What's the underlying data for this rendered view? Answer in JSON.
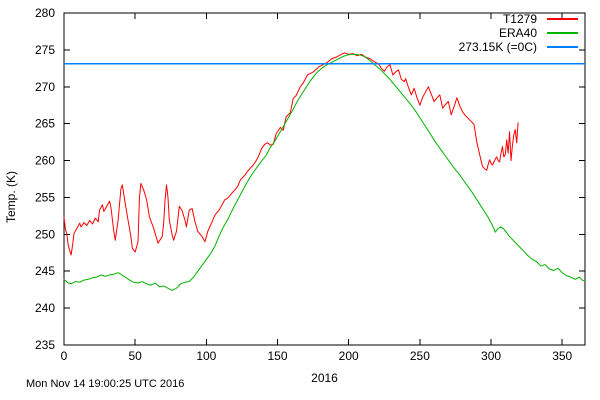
{
  "chart": {
    "timestamp": "Mon Nov 14 19:00:25 UTC 2016",
    "x_label": "2016",
    "y_label": "Temp. (K)",
    "legend": [
      {
        "label": "T1279",
        "color": "#ff0000"
      },
      {
        "label": "ERA40",
        "color": "#00b400"
      },
      {
        "label": "273.15K (=0C)",
        "color": "#0080ff"
      }
    ]
  },
  "chart_data": {
    "type": "line",
    "title": "",
    "xlabel": "2016",
    "ylabel": "Temp. (K)",
    "x_range": [
      0,
      366
    ],
    "y_range": [
      235,
      280
    ],
    "x_ticks": [
      0,
      50,
      100,
      150,
      200,
      250,
      300,
      350
    ],
    "y_ticks": [
      235,
      240,
      245,
      250,
      255,
      260,
      265,
      270,
      275,
      280
    ],
    "grid": false,
    "legend_position": "top-right",
    "ref_line": {
      "label": "273.15K (=0C)",
      "value": 273.15,
      "color": "#0080ff"
    },
    "series": [
      {
        "name": "T1279",
        "color": "#ff0000",
        "points": [
          [
            0,
            252.3
          ],
          [
            1,
            250.7
          ],
          [
            2,
            250.0
          ],
          [
            3,
            248.5
          ],
          [
            4,
            247.8
          ],
          [
            5,
            247.2
          ],
          [
            6,
            248.5
          ],
          [
            7,
            250.1
          ],
          [
            9,
            250.8
          ],
          [
            11,
            251.5
          ],
          [
            12,
            251.0
          ],
          [
            14,
            251.6
          ],
          [
            16,
            251.2
          ],
          [
            18,
            251.9
          ],
          [
            20,
            251.4
          ],
          [
            22,
            252.2
          ],
          [
            24,
            251.7
          ],
          [
            25,
            253.3
          ],
          [
            27,
            254.0
          ],
          [
            28,
            253.1
          ],
          [
            30,
            253.8
          ],
          [
            32,
            254.5
          ],
          [
            33,
            253.6
          ],
          [
            35,
            250.4
          ],
          [
            36,
            249.2
          ],
          [
            38,
            251.9
          ],
          [
            40,
            256.2
          ],
          [
            41,
            256.7
          ],
          [
            43,
            254.2
          ],
          [
            45,
            251.9
          ],
          [
            47,
            249.7
          ],
          [
            48,
            248.1
          ],
          [
            50,
            247.6
          ],
          [
            52,
            249.0
          ],
          [
            53,
            255.0
          ],
          [
            54,
            256.9
          ],
          [
            56,
            256.0
          ],
          [
            58,
            254.7
          ],
          [
            60,
            252.4
          ],
          [
            63,
            250.8
          ],
          [
            65,
            249.5
          ],
          [
            66,
            248.8
          ],
          [
            69,
            249.7
          ],
          [
            70,
            251.5
          ],
          [
            71,
            254.7
          ],
          [
            72,
            256.7
          ],
          [
            73,
            255.1
          ],
          [
            74,
            251.9
          ],
          [
            76,
            249.9
          ],
          [
            77,
            249.2
          ],
          [
            79,
            250.4
          ],
          [
            81,
            253.8
          ],
          [
            83,
            253.2
          ],
          [
            85,
            251.9
          ],
          [
            86,
            251.0
          ],
          [
            88,
            253.3
          ],
          [
            90,
            253.5
          ],
          [
            92,
            251.7
          ],
          [
            94,
            250.4
          ],
          [
            97,
            249.7
          ],
          [
            99,
            249.0
          ],
          [
            101,
            250.4
          ],
          [
            104,
            251.7
          ],
          [
            106,
            252.6
          ],
          [
            109,
            253.3
          ],
          [
            111,
            254.0
          ],
          [
            113,
            254.7
          ],
          [
            115,
            254.9
          ],
          [
            118,
            255.6
          ],
          [
            120,
            256.0
          ],
          [
            122,
            256.5
          ],
          [
            124,
            257.4
          ],
          [
            127,
            258.0
          ],
          [
            130,
            258.8
          ],
          [
            133,
            259.4
          ],
          [
            136,
            260.3
          ],
          [
            139,
            261.7
          ],
          [
            141,
            262.2
          ],
          [
            143,
            262.4
          ],
          [
            145,
            262.1
          ],
          [
            147,
            262.2
          ],
          [
            149,
            263.6
          ],
          [
            152,
            264.5
          ],
          [
            154,
            264.1
          ],
          [
            156,
            265.9
          ],
          [
            159,
            266.5
          ],
          [
            161,
            268.4
          ],
          [
            163,
            268.8
          ],
          [
            166,
            270.0
          ],
          [
            168,
            270.5
          ],
          [
            171,
            271.6
          ],
          [
            175,
            272.0
          ],
          [
            179,
            272.7
          ],
          [
            182,
            273.0
          ],
          [
            185,
            273.3
          ],
          [
            188,
            273.8
          ],
          [
            191,
            274.0
          ],
          [
            194,
            274.3
          ],
          [
            197,
            274.6
          ],
          [
            200,
            274.4
          ],
          [
            203,
            274.5
          ],
          [
            206,
            274.2
          ],
          [
            209,
            274.4
          ],
          [
            212,
            274.0
          ],
          [
            215,
            273.8
          ],
          [
            218,
            273.4
          ],
          [
            221,
            273.1
          ],
          [
            223,
            272.5
          ],
          [
            225,
            272.1
          ],
          [
            227,
            272.7
          ],
          [
            229,
            273.0
          ],
          [
            231,
            271.6
          ],
          [
            233,
            272.0
          ],
          [
            235,
            272.3
          ],
          [
            237,
            271.0
          ],
          [
            239,
            270.7
          ],
          [
            240,
            271.1
          ],
          [
            242,
            269.9
          ],
          [
            244,
            268.9
          ],
          [
            246,
            269.8
          ],
          [
            248,
            268.5
          ],
          [
            250,
            267.5
          ],
          [
            252,
            268.6
          ],
          [
            254,
            269.3
          ],
          [
            256,
            270.0
          ],
          [
            258,
            269.0
          ],
          [
            260,
            268.0
          ],
          [
            262,
            268.5
          ],
          [
            264,
            268.9
          ],
          [
            266,
            267.1
          ],
          [
            268,
            267.6
          ],
          [
            270,
            268.0
          ],
          [
            272,
            266.2
          ],
          [
            274,
            267.3
          ],
          [
            276,
            268.5
          ],
          [
            278,
            267.4
          ],
          [
            280,
            266.6
          ],
          [
            282,
            266.1
          ],
          [
            284,
            265.7
          ],
          [
            286,
            265.3
          ],
          [
            288,
            264.9
          ],
          [
            290,
            262.5
          ],
          [
            292,
            260.8
          ],
          [
            294,
            259.2
          ],
          [
            296,
            258.8
          ],
          [
            297,
            258.7
          ],
          [
            298,
            259.5
          ],
          [
            299,
            260.1
          ],
          [
            300,
            259.6
          ],
          [
            301,
            259.4
          ],
          [
            302,
            259.8
          ],
          [
            303,
            260.2
          ],
          [
            304,
            260.5
          ],
          [
            305,
            260.0
          ],
          [
            306,
            259.8
          ],
          [
            307,
            261.0
          ],
          [
            308,
            261.9
          ],
          [
            309,
            260.5
          ],
          [
            310,
            260.8
          ],
          [
            311,
            262.8
          ],
          [
            312,
            261.0
          ],
          [
            313,
            263.9
          ],
          [
            314,
            260.0
          ],
          [
            315,
            262.0
          ],
          [
            316,
            263.5
          ],
          [
            317,
            264.2
          ],
          [
            318,
            262.4
          ],
          [
            319,
            265.1
          ]
        ]
      },
      {
        "name": "ERA40",
        "color": "#00b400",
        "points": [
          [
            0,
            243.9
          ],
          [
            3,
            243.4
          ],
          [
            5,
            243.3
          ],
          [
            8,
            243.6
          ],
          [
            11,
            243.5
          ],
          [
            14,
            243.8
          ],
          [
            17,
            243.9
          ],
          [
            20,
            244.1
          ],
          [
            23,
            244.2
          ],
          [
            26,
            244.5
          ],
          [
            29,
            244.3
          ],
          [
            32,
            244.5
          ],
          [
            35,
            244.6
          ],
          [
            38,
            244.8
          ],
          [
            40,
            244.6
          ],
          [
            43,
            244.2
          ],
          [
            46,
            243.8
          ],
          [
            49,
            243.5
          ],
          [
            52,
            243.4
          ],
          [
            55,
            243.6
          ],
          [
            58,
            243.3
          ],
          [
            61,
            243.1
          ],
          [
            64,
            243.4
          ],
          [
            67,
            242.9
          ],
          [
            70,
            243.0
          ],
          [
            73,
            242.7
          ],
          [
            76,
            242.4
          ],
          [
            79,
            242.7
          ],
          [
            82,
            243.3
          ],
          [
            85,
            243.5
          ],
          [
            88,
            243.6
          ],
          [
            91,
            244.2
          ],
          [
            94,
            245.0
          ],
          [
            97,
            245.8
          ],
          [
            100,
            246.6
          ],
          [
            103,
            247.4
          ],
          [
            106,
            248.4
          ],
          [
            109,
            249.8
          ],
          [
            112,
            251.0
          ],
          [
            115,
            252.0
          ],
          [
            118,
            253.2
          ],
          [
            121,
            254.3
          ],
          [
            124,
            255.4
          ],
          [
            127,
            256.5
          ],
          [
            130,
            257.5
          ],
          [
            133,
            258.4
          ],
          [
            136,
            259.2
          ],
          [
            139,
            260.0
          ],
          [
            142,
            260.7
          ],
          [
            145,
            261.8
          ],
          [
            148,
            262.6
          ],
          [
            151,
            263.6
          ],
          [
            154,
            264.6
          ],
          [
            157,
            265.6
          ],
          [
            160,
            266.6
          ],
          [
            163,
            267.7
          ],
          [
            166,
            268.7
          ],
          [
            169,
            269.6
          ],
          [
            172,
            270.5
          ],
          [
            175,
            271.3
          ],
          [
            178,
            272.0
          ],
          [
            181,
            272.5
          ],
          [
            184,
            272.9
          ],
          [
            187,
            273.2
          ],
          [
            190,
            273.5
          ],
          [
            193,
            273.8
          ],
          [
            196,
            274.1
          ],
          [
            199,
            274.3
          ],
          [
            202,
            274.4
          ],
          [
            205,
            274.4
          ],
          [
            208,
            274.3
          ],
          [
            211,
            274.1
          ],
          [
            214,
            273.7
          ],
          [
            217,
            273.2
          ],
          [
            220,
            272.7
          ],
          [
            223,
            272.2
          ],
          [
            226,
            271.6
          ],
          [
            229,
            271.0
          ],
          [
            232,
            270.3
          ],
          [
            235,
            269.6
          ],
          [
            238,
            268.9
          ],
          [
            241,
            268.2
          ],
          [
            244,
            267.5
          ],
          [
            247,
            266.7
          ],
          [
            250,
            265.8
          ],
          [
            253,
            264.9
          ],
          [
            256,
            264.0
          ],
          [
            259,
            263.1
          ],
          [
            262,
            262.2
          ],
          [
            265,
            261.4
          ],
          [
            268,
            260.6
          ],
          [
            271,
            259.8
          ],
          [
            274,
            259.0
          ],
          [
            277,
            258.3
          ],
          [
            280,
            257.5
          ],
          [
            283,
            256.7
          ],
          [
            286,
            255.9
          ],
          [
            289,
            255.0
          ],
          [
            292,
            254.1
          ],
          [
            295,
            253.2
          ],
          [
            298,
            252.3
          ],
          [
            301,
            251.2
          ],
          [
            303,
            250.3
          ],
          [
            305,
            250.8
          ],
          [
            307,
            251.0
          ],
          [
            309,
            250.7
          ],
          [
            311,
            250.2
          ],
          [
            313,
            249.7
          ],
          [
            315,
            249.3
          ],
          [
            317,
            248.9
          ],
          [
            320,
            248.3
          ],
          [
            323,
            247.7
          ],
          [
            326,
            247.1
          ],
          [
            329,
            246.6
          ],
          [
            332,
            246.3
          ],
          [
            335,
            245.7
          ],
          [
            338,
            245.9
          ],
          [
            341,
            245.3
          ],
          [
            344,
            245.1
          ],
          [
            347,
            245.4
          ],
          [
            350,
            244.8
          ],
          [
            353,
            244.4
          ],
          [
            356,
            244.2
          ],
          [
            359,
            243.9
          ],
          [
            362,
            244.2
          ],
          [
            364,
            243.8
          ],
          [
            366,
            243.7
          ]
        ]
      }
    ]
  }
}
